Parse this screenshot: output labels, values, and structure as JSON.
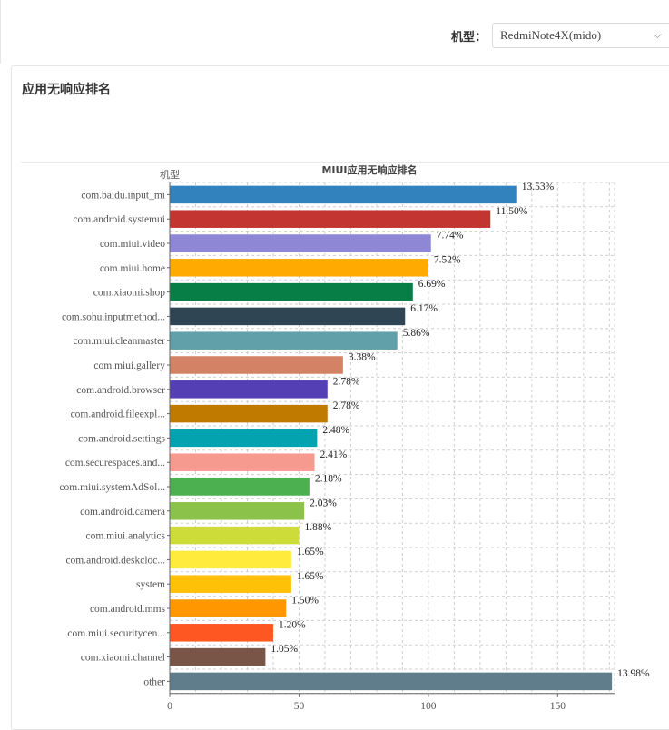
{
  "filter": {
    "label": "机型：",
    "selected": "RedmiNote4X(mido)"
  },
  "panel": {
    "title": "应用无响应排名"
  },
  "chart_data": {
    "type": "bar",
    "orientation": "horizontal",
    "title": "MIUI应用无响应排名",
    "ylabel": "机型",
    "xlabel": "",
    "grid": true,
    "x_ticks": [
      0,
      50,
      100,
      150
    ],
    "xlim": [
      0,
      172
    ],
    "categories": [
      "com.baidu.input_mi",
      "com.android.systemui",
      "com.miui.video",
      "com.miui.home",
      "com.xiaomi.shop",
      "com.sohu.inputmethod...",
      "com.miui.cleanmaster",
      "com.miui.gallery",
      "com.android.browser",
      "com.android.fileexpl...",
      "com.android.settings",
      "com.securespaces.and...",
      "com.miui.systemAdSol...",
      "com.android.camera",
      "com.miui.analytics",
      "com.android.deskcloc...",
      "system",
      "com.android.mms",
      "com.miui.securitycen...",
      "com.xiaomi.channel",
      "other"
    ],
    "values": [
      134,
      124,
      101,
      100,
      94,
      91,
      88,
      67,
      61,
      61,
      57,
      56,
      54,
      52,
      50,
      47,
      47,
      45,
      40,
      37,
      171
    ],
    "data_labels": [
      "13.53%",
      "11.50%",
      "7.74%",
      "7.52%",
      "6.69%",
      "6.17%",
      "5.86%",
      "3.38%",
      "2.78%",
      "2.78%",
      "2.48%",
      "2.41%",
      "2.18%",
      "2.03%",
      "1.88%",
      "1.65%",
      "1.65%",
      "1.50%",
      "1.20%",
      "1.05%",
      "13.98%"
    ],
    "colors": [
      "#3182bd",
      "#c23531",
      "#8d87d6",
      "#ffaa00",
      "#067e45",
      "#2f4554",
      "#61a0a8",
      "#d48265",
      "#553fb5",
      "#c17a00",
      "#03a3af",
      "#f6998f",
      "#4caf50",
      "#8bc34a",
      "#cddc39",
      "#ffeb3b",
      "#ffc107",
      "#ff9800",
      "#ff5722",
      "#795548",
      "#607d8b"
    ]
  }
}
